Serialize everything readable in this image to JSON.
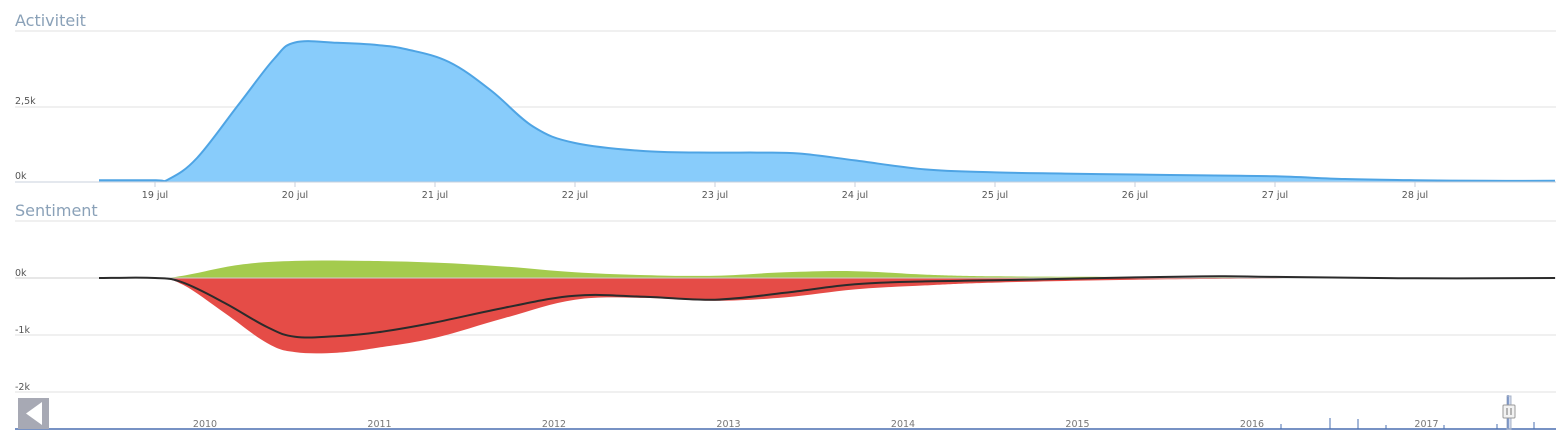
{
  "colors": {
    "activity_fill": "#88ccfb",
    "activity_line": "#4ea4e4",
    "positive": "#a4cb4e",
    "negative": "#e54c47",
    "net_line": "#2b2b2b",
    "title": "#8aa1b8",
    "grid": "#e2e2e2",
    "navigator_line": "#4a6fb0",
    "nav_button": "#a7a9b4"
  },
  "chart_data": [
    {
      "type": "area",
      "title": "Activiteit",
      "xlabel": "",
      "ylabel": "",
      "x_ticks": [
        "19 jul",
        "20 jul",
        "21 jul",
        "22 jul",
        "23 jul",
        "24 jul",
        "25 jul",
        "26 jul",
        "27 jul",
        "28 jul"
      ],
      "y_ticks": [
        "0k",
        "2,5k"
      ],
      "ylim": [
        0,
        4700
      ],
      "grid": true,
      "series": [
        {
          "x": [
            -0.4,
            0.0,
            0.1,
            0.3,
            0.6,
            0.85,
            1.0,
            1.3,
            1.6,
            1.8,
            2.1,
            2.4,
            2.7,
            3.0,
            3.5,
            4.0,
            4.3,
            4.6,
            5.0,
            5.5,
            6.0,
            6.5,
            7.0,
            7.5,
            8.0,
            8.5,
            9.0,
            9.5,
            10.0
          ],
          "values": [
            60,
            60,
            100,
            800,
            2600,
            4100,
            4650,
            4640,
            4560,
            4420,
            4000,
            3050,
            1850,
            1300,
            1030,
            980,
            980,
            950,
            720,
            420,
            320,
            280,
            250,
            220,
            190,
            100,
            60,
            40,
            40
          ]
        }
      ]
    },
    {
      "type": "area",
      "title": "Sentiment",
      "xlabel": "",
      "ylabel": "",
      "y_ticks": [
        "0k",
        "-1k",
        "-2k"
      ],
      "ylim": [
        -2000,
        1000
      ],
      "grid": true,
      "series": [
        {
          "x": [
            -0.4,
            0.0,
            0.2,
            0.6,
            1.0,
            1.5,
            2.0,
            2.5,
            3.0,
            3.5,
            4.0,
            4.5,
            5.0,
            5.5,
            6.0,
            7.0,
            8.0,
            9.0,
            10.0
          ],
          "values": [
            0,
            0,
            40,
            230,
            300,
            300,
            270,
            200,
            100,
            50,
            40,
            100,
            120,
            60,
            30,
            20,
            10,
            0,
            0
          ]
        },
        {
          "x": [
            -0.4,
            0.0,
            0.2,
            0.5,
            0.8,
            1.0,
            1.3,
            1.6,
            2.0,
            2.5,
            3.0,
            3.5,
            4.0,
            4.5,
            5.0,
            5.5,
            6.0,
            7.0,
            8.0,
            9.0,
            10.0
          ],
          "values": [
            0,
            0,
            -120,
            -620,
            -1140,
            -1300,
            -1310,
            -1220,
            -1050,
            -700,
            -380,
            -350,
            -400,
            -340,
            -200,
            -130,
            -80,
            -30,
            -10,
            0,
            0
          ]
        },
        {
          "x": [
            -0.4,
            0.0,
            0.2,
            0.5,
            0.8,
            1.0,
            1.3,
            1.6,
            2.0,
            2.5,
            3.0,
            3.5,
            4.0,
            4.5,
            5.0,
            5.5,
            6.0,
            7.0,
            7.6,
            8.0,
            9.0,
            10.0
          ],
          "values": [
            0,
            0,
            -80,
            -440,
            -860,
            -1030,
            -1020,
            -950,
            -780,
            -520,
            -310,
            -330,
            -380,
            -260,
            -110,
            -60,
            -40,
            10,
            30,
            20,
            -5,
            0
          ]
        }
      ]
    },
    {
      "type": "line",
      "x_ticks": [
        "2010",
        "2011",
        "2012",
        "2013",
        "2014",
        "2015",
        "2016",
        "2017"
      ]
    }
  ]
}
